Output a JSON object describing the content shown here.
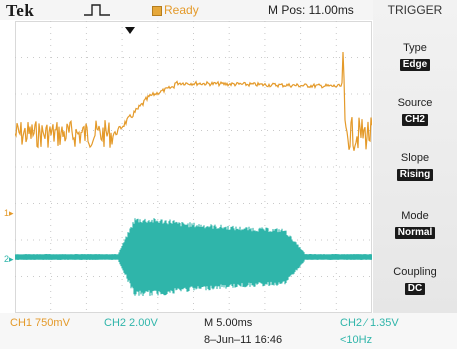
{
  "header": {
    "brand": "Tek",
    "status": "Ready",
    "mpos": "M Pos: 11.00ms"
  },
  "menu": {
    "title": "TRIGGER",
    "items": [
      {
        "label": "Type",
        "value": "Edge"
      },
      {
        "label": "Source",
        "value": "CH2"
      },
      {
        "label": "Slope",
        "value": "Rising"
      },
      {
        "label": "Mode",
        "value": "Normal"
      },
      {
        "label": "Coupling",
        "value": "DC"
      }
    ]
  },
  "markers": {
    "ch1": "1▸",
    "ch2": "2▸"
  },
  "footer": {
    "ch1_scale": "CH1  750mV",
    "ch2_scale": "CH2  2.00V",
    "timebase": "M 5.00ms",
    "trigger": "CH2 ⁄ 1.35V",
    "date": "8–Jun–11 16:46",
    "freq": "<10Hz"
  },
  "colors": {
    "ch1": "#e49a2a",
    "ch2": "#2fb5aa",
    "grid": "#c9c9c9"
  }
}
